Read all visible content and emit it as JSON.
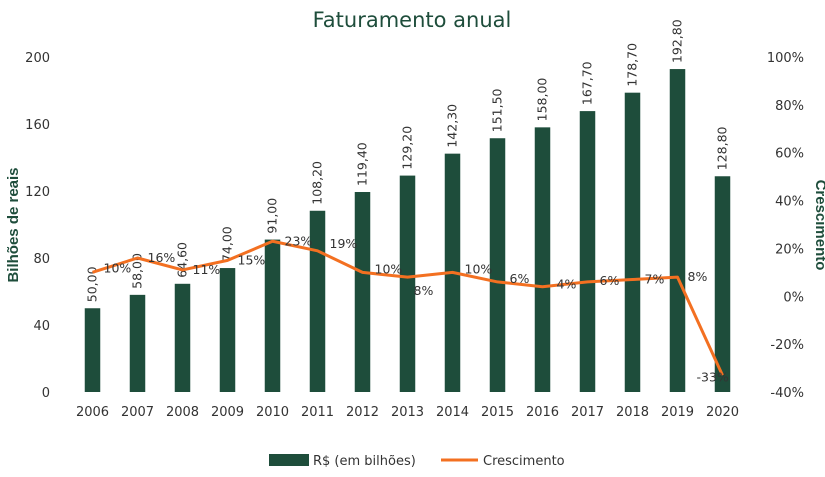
{
  "chart_data": {
    "type": "bar",
    "title": "Faturamento anual",
    "ylabel": "Bilhões de reais",
    "y2label": "Crescimento",
    "categories": [
      "2006",
      "2007",
      "2008",
      "2009",
      "2010",
      "2011",
      "2012",
      "2013",
      "2014",
      "2015",
      "2016",
      "2017",
      "2018",
      "2019",
      "2020"
    ],
    "ylim": [
      0,
      200
    ],
    "yticks": [
      "0",
      "40",
      "80",
      "120",
      "160",
      "200"
    ],
    "ytick_values": [
      0,
      40,
      80,
      120,
      160,
      200
    ],
    "y2lim": [
      -40,
      100
    ],
    "y2ticks": [
      "-40%",
      "-20%",
      "0%",
      "20%",
      "40%",
      "60%",
      "80%",
      "100%"
    ],
    "y2tick_values": [
      -40,
      -20,
      0,
      20,
      40,
      60,
      80,
      100
    ],
    "series": [
      {
        "name": "R$ (em bilhões)",
        "kind": "bar",
        "color": "#1e4d3b",
        "values": [
          50.0,
          58.0,
          64.6,
          74.0,
          91.0,
          108.2,
          119.4,
          129.2,
          142.3,
          151.5,
          158.0,
          167.7,
          178.7,
          192.8,
          128.8
        ],
        "labels": [
          "50,00",
          "58,00",
          "64,60",
          "74,00",
          "91,00",
          "108,20",
          "119,40",
          "129,20",
          "142,30",
          "151,50",
          "158,00",
          "167,70",
          "178,70",
          "192,80",
          "128,80"
        ]
      },
      {
        "name": "Crescimento",
        "kind": "line",
        "axis": "right",
        "color": "#f37021",
        "values": [
          10,
          16,
          11,
          15,
          23,
          19,
          10,
          8,
          10,
          6,
          4,
          6,
          7,
          8,
          -33
        ],
        "labels": [
          "10%",
          "16%",
          "11%",
          "15%",
          "23%",
          "19%",
          "10%",
          "8%",
          "10%",
          "6%",
          "4%",
          "6%",
          "7%",
          "8%",
          "-33%"
        ]
      }
    ],
    "legend": "bottom",
    "grid": false
  }
}
